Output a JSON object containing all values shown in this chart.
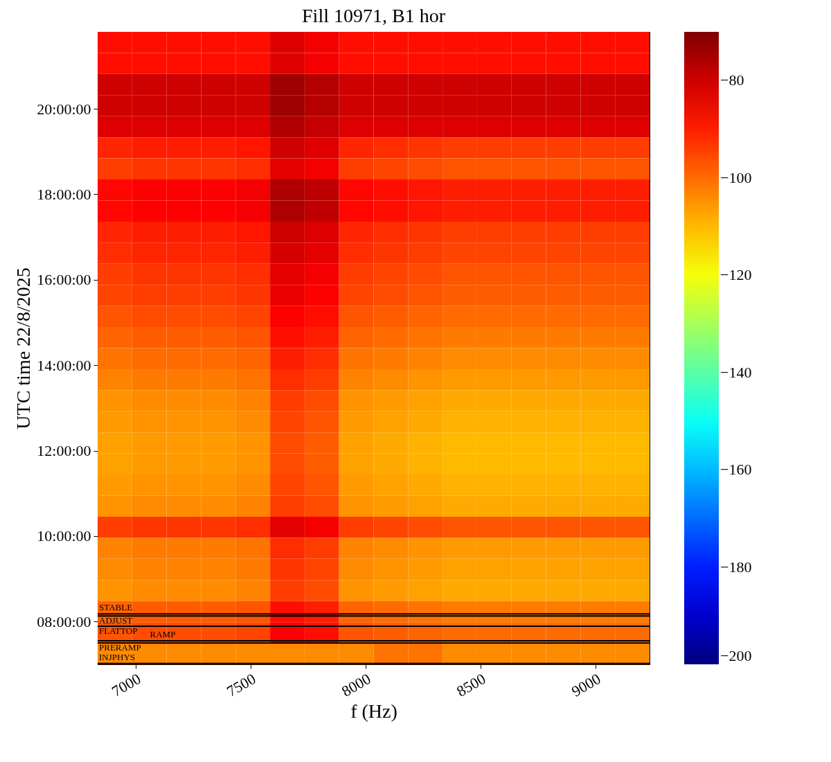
{
  "chart_data": {
    "type": "heatmap",
    "title": "Fill 10971, B1 hor",
    "xlabel": "f (Hz)",
    "ylabel": "UTC time 22/8/2025",
    "xlim": [
      6834,
      9235
    ],
    "xticks": [
      7000,
      7500,
      8000,
      8500,
      9000
    ],
    "ylim": [
      7.0,
      21.8
    ],
    "yticks": [
      {
        "value": 8,
        "label": "08:00:00"
      },
      {
        "value": 10,
        "label": "10:00:00"
      },
      {
        "value": 12,
        "label": "12:00:00"
      },
      {
        "value": 14,
        "label": "14:00:00"
      },
      {
        "value": 16,
        "label": "16:00:00"
      },
      {
        "value": 18,
        "label": "18:00:00"
      },
      {
        "value": 20,
        "label": "20:00:00"
      }
    ],
    "clim": [
      -200,
      -70
    ],
    "cticks": [
      -200,
      -180,
      -160,
      -140,
      -120,
      -100,
      -80
    ],
    "cells": [
      [
        -88,
        -88,
        -88,
        -88,
        -88,
        -82,
        -85,
        -88,
        -88,
        -88,
        -88,
        -88,
        -88,
        -88,
        -88,
        -88
      ],
      [
        -88,
        -88,
        -88,
        -88,
        -88,
        -82,
        -85,
        -88,
        -88,
        -88,
        -88,
        -88,
        -88,
        -88,
        -88,
        -88
      ],
      [
        -80,
        -80,
        -80,
        -80,
        -80,
        -74,
        -77,
        -80,
        -80,
        -80,
        -80,
        -80,
        -80,
        -80,
        -80,
        -80
      ],
      [
        -80,
        -80,
        -80,
        -80,
        -80,
        -74,
        -77,
        -80,
        -80,
        -80,
        -80,
        -80,
        -80,
        -80,
        -80,
        -80
      ],
      [
        -82,
        -82,
        -82,
        -82,
        -82,
        -76,
        -79,
        -82,
        -82,
        -82,
        -82,
        -82,
        -82,
        -82,
        -82,
        -82
      ],
      [
        -91,
        -90,
        -90,
        -90,
        -89,
        -80,
        -82,
        -91,
        -92,
        -93,
        -94,
        -94,
        -94,
        -94,
        -94,
        -94
      ],
      [
        -94,
        -93,
        -93,
        -93,
        -92,
        -83,
        -85,
        -94,
        -95,
        -96,
        -97,
        -97,
        -97,
        -97,
        -97,
        -97
      ],
      [
        -87,
        -86,
        -86,
        -86,
        -85,
        -76,
        -78,
        -87,
        -88,
        -89,
        -90,
        -90,
        -90,
        -90,
        -90,
        -90
      ],
      [
        -87,
        -86,
        -86,
        -86,
        -85,
        -76,
        -78,
        -87,
        -88,
        -89,
        -90,
        -90,
        -90,
        -90,
        -90,
        -90
      ],
      [
        -91,
        -90,
        -90,
        -90,
        -89,
        -80,
        -82,
        -91,
        -92,
        -93,
        -94,
        -94,
        -94,
        -94,
        -94,
        -94
      ],
      [
        -92,
        -91,
        -91,
        -91,
        -90,
        -81,
        -83,
        -92,
        -93,
        -94,
        -95,
        -95,
        -95,
        -95,
        -95,
        -95
      ],
      [
        -94,
        -93,
        -93,
        -93,
        -92,
        -83,
        -85,
        -94,
        -95,
        -96,
        -97,
        -97,
        -97,
        -97,
        -97,
        -97
      ],
      [
        -95,
        -94,
        -94,
        -94,
        -93,
        -84,
        -86,
        -95,
        -96,
        -97,
        -98,
        -98,
        -98,
        -98,
        -98,
        -98
      ],
      [
        -97,
        -96,
        -96,
        -96,
        -95,
        -86,
        -88,
        -97,
        -98,
        -99,
        -100,
        -100,
        -100,
        -100,
        -100,
        -100
      ],
      [
        -99,
        -98,
        -98,
        -98,
        -97,
        -88,
        -90,
        -99,
        -100,
        -101,
        -102,
        -102,
        -102,
        -102,
        -102,
        -102
      ],
      [
        -101,
        -100,
        -100,
        -100,
        -99,
        -90,
        -92,
        -101,
        -102,
        -103,
        -104,
        -104,
        -104,
        -104,
        -104,
        -104
      ],
      [
        -103,
        -102,
        -102,
        -102,
        -101,
        -92,
        -94,
        -103,
        -104,
        -105,
        -106,
        -106,
        -106,
        -106,
        -106,
        -106
      ],
      [
        -105,
        -104,
        -104,
        -104,
        -103,
        -94,
        -96,
        -105,
        -106,
        -107,
        -108,
        -108,
        -108,
        -108,
        -108,
        -108
      ],
      [
        -106,
        -105,
        -105,
        -105,
        -104,
        -95,
        -97,
        -106,
        -107,
        -108,
        -109,
        -109,
        -109,
        -109,
        -109,
        -109
      ],
      [
        -107,
        -106,
        -106,
        -106,
        -105,
        -96,
        -98,
        -107,
        -108,
        -109,
        -110,
        -110,
        -110,
        -110,
        -110,
        -110
      ],
      [
        -107,
        -106,
        -106,
        -106,
        -105,
        -96,
        -98,
        -107,
        -108,
        -109,
        -110,
        -110,
        -110,
        -110,
        -110,
        -110
      ],
      [
        -106,
        -105,
        -105,
        -105,
        -104,
        -95,
        -97,
        -106,
        -107,
        -108,
        -109,
        -109,
        -109,
        -109,
        -109,
        -109
      ],
      [
        -105,
        -104,
        -104,
        -104,
        -103,
        -94,
        -96,
        -105,
        -106,
        -107,
        -108,
        -108,
        -108,
        -108,
        -108,
        -108
      ],
      [
        -94,
        -93,
        -93,
        -93,
        -92,
        -83,
        -85,
        -94,
        -95,
        -96,
        -97,
        -97,
        -97,
        -97,
        -97,
        -97
      ],
      [
        -103,
        -102,
        -102,
        -102,
        -101,
        -92,
        -94,
        -103,
        -104,
        -105,
        -106,
        -106,
        -106,
        -106,
        -106,
        -106
      ],
      [
        -104,
        -103,
        -103,
        -103,
        -102,
        -93,
        -95,
        -104,
        -105,
        -106,
        -107,
        -107,
        -107,
        -107,
        -107,
        -107
      ],
      [
        -105,
        -104,
        -104,
        -104,
        -103,
        -94,
        -96,
        -105,
        -106,
        -107,
        -108,
        -108,
        -108,
        -108,
        -108,
        -108
      ],
      [
        -99,
        -98,
        -98,
        -98,
        -97,
        -88,
        -90,
        -99,
        -100,
        -101,
        -102,
        -102,
        -102,
        -102,
        -102,
        -102
      ],
      [
        -97,
        -96,
        -96,
        -96,
        -95,
        -86,
        -88,
        -97,
        -98,
        -99,
        -100,
        -100,
        -100,
        -100,
        -100,
        -100
      ],
      [
        -104,
        -104,
        -104,
        -104,
        -104,
        -104,
        -104,
        -104,
        -101,
        -101,
        -104,
        -104,
        -104,
        -104,
        -104,
        -104
      ]
    ],
    "ref_lines": [
      {
        "axis": "y",
        "value": 8.18,
        "label": "STABLE",
        "color": "#000000"
      },
      {
        "axis": "y",
        "value": 8.13,
        "label": "ADJUST",
        "color": "#000000"
      },
      {
        "axis": "y",
        "value": 7.89,
        "label": "FLATTOP",
        "color": "#000000"
      },
      {
        "axis": "y",
        "value": 7.55,
        "label": "RAMP",
        "color": "#000000"
      },
      {
        "axis": "y",
        "value": 7.5,
        "label": "PRERAMP",
        "color": "#000000"
      },
      {
        "axis": "y",
        "value": 7.02,
        "label": "INJPHYS",
        "color": "#000000"
      }
    ]
  }
}
